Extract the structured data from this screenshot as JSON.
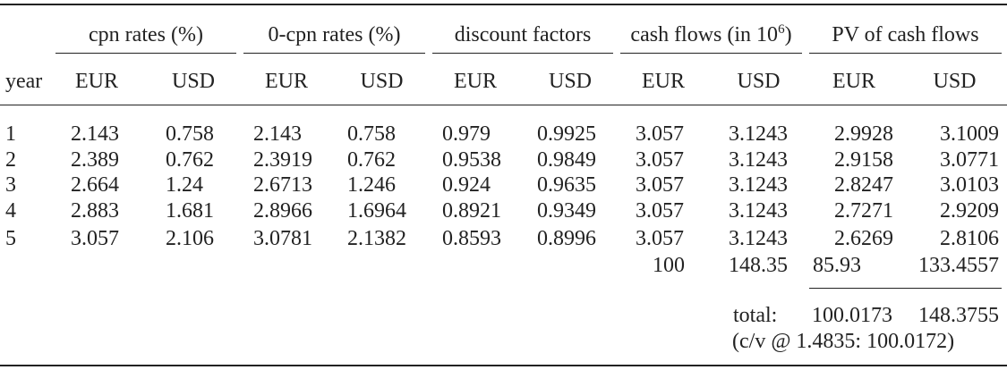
{
  "headers": {
    "groups": [
      "cpn rates (%)",
      "0-cpn rates (%)",
      "discount factors",
      "cash flows (in 10",
      "PV of cash flows"
    ],
    "cashflow_exponent": "6",
    "cashflow_close": ")",
    "year": "year",
    "sub": [
      "EUR",
      "USD",
      "EUR",
      "USD",
      "EUR",
      "USD",
      "EUR",
      "USD",
      "EUR",
      "USD"
    ]
  },
  "rows": [
    {
      "year": "1",
      "cells": [
        "2.143",
        "0.758",
        "2.143",
        "0.758",
        "0.979",
        "0.9925",
        "3.057",
        "3.1243",
        "2.9928",
        "3.1009"
      ]
    },
    {
      "year": "2",
      "cells": [
        "2.389",
        "0.762",
        "2.3919",
        "0.762",
        "0.9538",
        "0.9849",
        "3.057",
        "3.1243",
        "2.9158",
        "3.0771"
      ]
    },
    {
      "year": "3",
      "cells": [
        "2.664",
        "1.24",
        "2.6713",
        "1.246",
        "0.924",
        "0.9635",
        "3.057",
        "3.1243",
        "2.8247",
        "3.0103"
      ]
    },
    {
      "year": "4",
      "cells": [
        "2.883",
        "1.681",
        "2.8966",
        "1.6964",
        "0.8921",
        "0.9349",
        "3.057",
        "3.1243",
        "2.7271",
        "2.9209"
      ]
    },
    {
      "year": "5",
      "cells": [
        "3.057",
        "2.106",
        "3.0781",
        "2.1382",
        "0.8593",
        "0.8996",
        "3.057",
        "3.1243",
        "2.6269",
        "2.8106"
      ]
    }
  ],
  "principal": {
    "cf_eur": "100",
    "cf_usd": "148.35",
    "pv_eur": "85.93",
    "pv_usd": "133.4557"
  },
  "total": {
    "label": "total:",
    "eur": "100.0173",
    "usd": "148.3755"
  },
  "conversion_note": "(c/v @ 1.4835: 100.0172)"
}
